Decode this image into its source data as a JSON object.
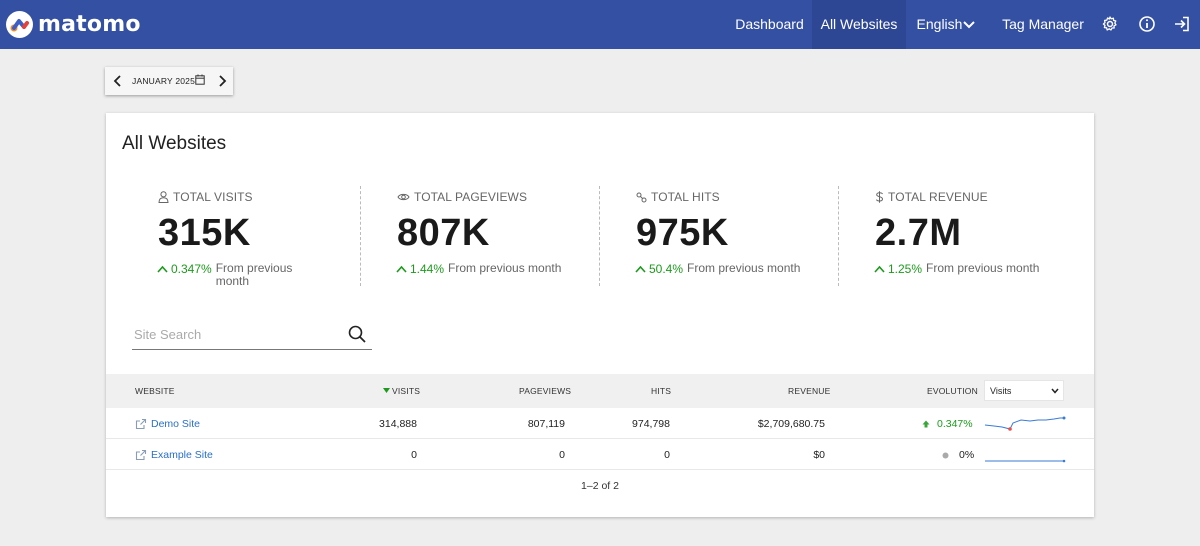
{
  "app": {
    "logo_text": "matomo"
  },
  "nav": {
    "dashboard": "Dashboard",
    "all_websites": "All Websites",
    "language": "English",
    "tag_manager": "Tag Manager"
  },
  "period": {
    "label": "JANUARY 2025"
  },
  "card": {
    "title": "All Websites"
  },
  "kpis": [
    {
      "icon": "user-icon",
      "label": "TOTAL VISITS",
      "value": "315K",
      "change": "0.347%",
      "from": "From previous month"
    },
    {
      "icon": "eye-icon",
      "label": "TOTAL PAGEVIEWS",
      "value": "807K",
      "change": "1.44%",
      "from": "From previous month"
    },
    {
      "icon": "hits-icon",
      "label": "TOTAL HITS",
      "value": "975K",
      "change": "50.4%",
      "from": "From previous month"
    },
    {
      "icon": "dollar-icon",
      "label": "TOTAL REVENUE",
      "value": "2.7M",
      "change": "1.25%",
      "from": "From previous month"
    }
  ],
  "search": {
    "placeholder": "Site Search"
  },
  "table": {
    "headers": {
      "website": "WEBSITE",
      "visits": "VISITS",
      "pageviews": "PAGEVIEWS",
      "hits": "HITS",
      "revenue": "REVENUE",
      "evolution": "EVOLUTION"
    },
    "evolution_metric": "Visits",
    "rows": [
      {
        "site": "Demo Site",
        "visits": "314,888",
        "pageviews": "807,119",
        "hits": "974,798",
        "revenue": "$2,709,680.75",
        "evolution": "0.347%"
      },
      {
        "site": "Example Site",
        "visits": "0",
        "pageviews": "0",
        "hits": "0",
        "revenue": "$0",
        "evolution": "0%"
      }
    ],
    "pagination": "1–2 of 2"
  },
  "colors": {
    "header_bg": "#3450a3",
    "positive": "#1d9a1d",
    "link": "#2a6fc6",
    "sparkline": "#3a7bd5"
  }
}
